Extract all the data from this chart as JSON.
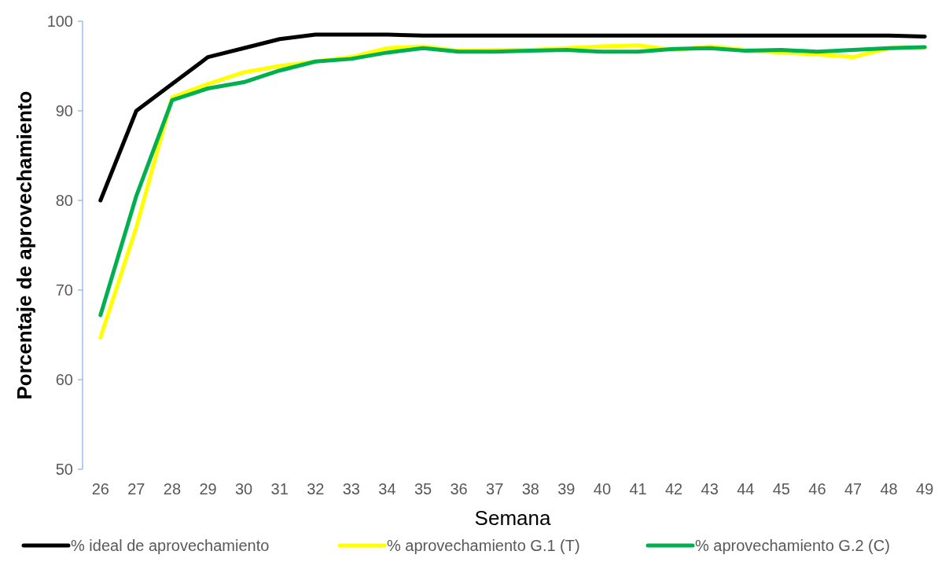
{
  "chart_data": {
    "type": "line",
    "xlabel": "Semana",
    "ylabel": "Porcentaje de aprovechamiento",
    "categories": [
      "26",
      "27",
      "28",
      "29",
      "30",
      "31",
      "32",
      "33",
      "34",
      "35",
      "36",
      "37",
      "38",
      "39",
      "40",
      "41",
      "42",
      "43",
      "44",
      "45",
      "46",
      "47",
      "48",
      "49"
    ],
    "ylim": [
      50,
      100
    ],
    "yticks": [
      50,
      60,
      70,
      80,
      90,
      100
    ],
    "grid": false,
    "legend": "bottom",
    "marker": "none",
    "line_style": "solid",
    "series": [
      {
        "name": "% ideal de aprovechamiento",
        "color": "#000000",
        "values": [
          80,
          90,
          93,
          96,
          97,
          98,
          98.5,
          98.5,
          98.5,
          98.4,
          98.4,
          98.4,
          98.4,
          98.4,
          98.4,
          98.4,
          98.4,
          98.4,
          98.4,
          98.4,
          98.4,
          98.4,
          98.4,
          98.3
        ]
      },
      {
        "name": "% aprovechamiento G.1 (T)",
        "color": "#ffff00",
        "values": [
          64.7,
          77,
          91.5,
          93,
          94.3,
          95,
          95.5,
          96,
          97,
          97.2,
          96.7,
          96.8,
          96.8,
          97,
          97.2,
          97.3,
          96.8,
          97.2,
          96.8,
          96.5,
          96.3,
          96,
          97,
          97.1
        ]
      },
      {
        "name": "% aprovechamiento G.2 (C)",
        "color": "#00b050",
        "values": [
          67.2,
          80.5,
          91.2,
          92.5,
          93.2,
          94.5,
          95.5,
          95.8,
          96.5,
          97,
          96.6,
          96.6,
          96.7,
          96.8,
          96.6,
          96.6,
          96.9,
          97,
          96.7,
          96.8,
          96.6,
          96.8,
          97,
          97.1
        ]
      }
    ]
  }
}
